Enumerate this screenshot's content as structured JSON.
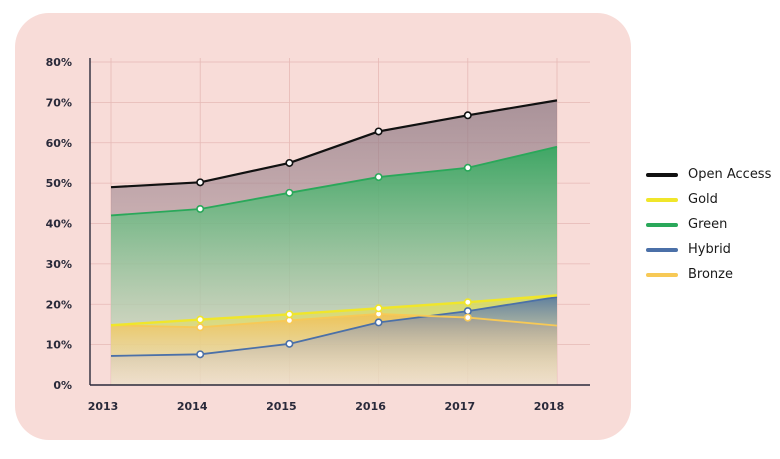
{
  "chart_data": {
    "type": "area",
    "title": "",
    "xlabel": "",
    "ylabel": "",
    "x": [
      "2013",
      "2014",
      "2015",
      "2016",
      "2017",
      "2018"
    ],
    "ylim": [
      0,
      80
    ],
    "yticks": [
      "0%",
      "10%",
      "20%",
      "30%",
      "40%",
      "50%",
      "60%",
      "70%",
      "80%"
    ],
    "grid": true,
    "legend_position": "right",
    "series": [
      {
        "name": "Open Access",
        "color": "#111111",
        "values": [
          49,
          50.2,
          55,
          62.8,
          66.8,
          70.5
        ]
      },
      {
        "name": "Gold",
        "color": "#f0e62a",
        "values": [
          14.8,
          16.2,
          17.5,
          19,
          20.5,
          22.2
        ]
      },
      {
        "name": "Green",
        "color": "#2aa85a",
        "values": [
          42,
          43.6,
          47.6,
          51.5,
          53.8,
          59
        ]
      },
      {
        "name": "Hybrid",
        "color": "#4b70a8",
        "values": [
          7.2,
          7.6,
          10.2,
          15.5,
          18.3,
          21.8
        ]
      },
      {
        "name": "Bronze",
        "color": "#f7c956",
        "values": [
          14.8,
          14.3,
          16,
          17.6,
          16.7,
          14.7
        ]
      }
    ]
  }
}
